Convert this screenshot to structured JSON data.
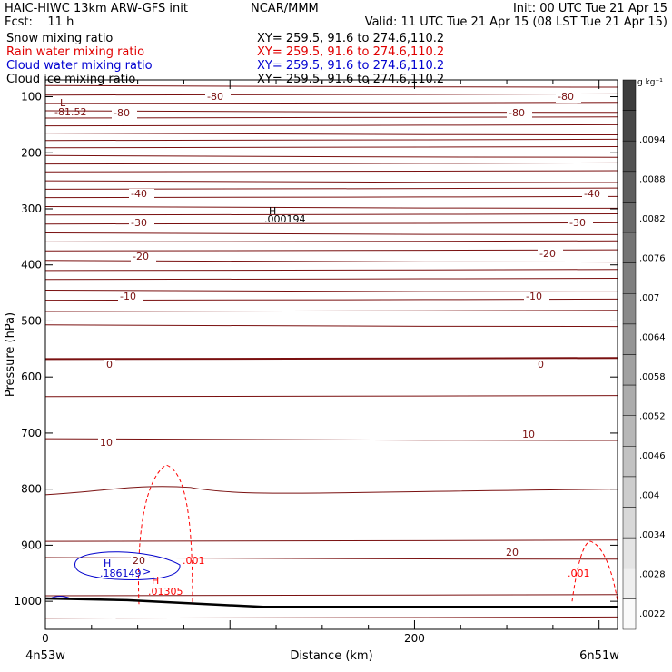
{
  "header": {
    "left1": "HAIC-HIWC 13km ARW-GFS init",
    "center1": "NCAR/MMM",
    "right1": "Init: 00 UTC Tue 21 Apr 15",
    "left2": "Fcst:    11 h",
    "right2": "Valid: 11 UTC Tue 21 Apr 15 (08 LST Tue 21 Apr 15)"
  },
  "fields": [
    {
      "name": "Snow mixing ratio",
      "xy": "XY= 259.5, 91.6 to 274.6,110.2",
      "color": "#000000"
    },
    {
      "name": "Rain water mixing ratio",
      "xy": "XY= 259.5, 91.6 to 274.6,110.2",
      "color": "#ff0000"
    },
    {
      "name": "Cloud water mixing ratio",
      "xy": "XY= 259.5, 91.6 to 274.6,110.2",
      "color": "#0000ff"
    },
    {
      "name": "Cloud ice mixing ratio",
      "xy": "XY= 259.5, 91.6 to 274.6,110.2",
      "color": "#000000"
    }
  ],
  "chart_data": {
    "type": "cross-section contour",
    "xlabel": "Distance (km)",
    "ylabel": "Pressure (hPa)",
    "xlim": [
      0,
      310
    ],
    "ylim": [
      1050,
      70
    ],
    "xticks": [
      "0",
      "200"
    ],
    "yticks": [
      "100",
      "200",
      "300",
      "400",
      "500",
      "600",
      "700",
      "800",
      "900",
      "1000"
    ],
    "endpoints": {
      "left": "4n53w",
      "right": "6n51w"
    },
    "colorbar": {
      "unit": "g kg⁻¹",
      "labels": [
        ".0094",
        ".0088",
        ".0082",
        ".0076",
        ".007",
        ".0064",
        ".0058",
        ".0052",
        ".0046",
        ".004",
        ".0034",
        ".0028",
        ".0022"
      ]
    },
    "temperature_contour_labels": [
      "-80",
      "-80",
      "-80",
      "-80",
      "-40",
      "-40",
      "-30",
      "-30",
      "-20",
      "-20",
      "-10",
      "-10",
      "0",
      "0",
      "10",
      "10",
      "20",
      "20"
    ],
    "temperature_extrema": {
      "symbol": "L",
      "value": "-81.52"
    },
    "rain_labels": [
      ".001",
      ".001"
    ],
    "rain_max": {
      "symbol": "H",
      "value": ".01305"
    },
    "cloud_ice_max": {
      "symbol": "H",
      "value": ".000194"
    },
    "cloud_water_max": {
      "symbol": "H",
      "value": ".186149"
    },
    "cloud_water_arrow": ">"
  }
}
